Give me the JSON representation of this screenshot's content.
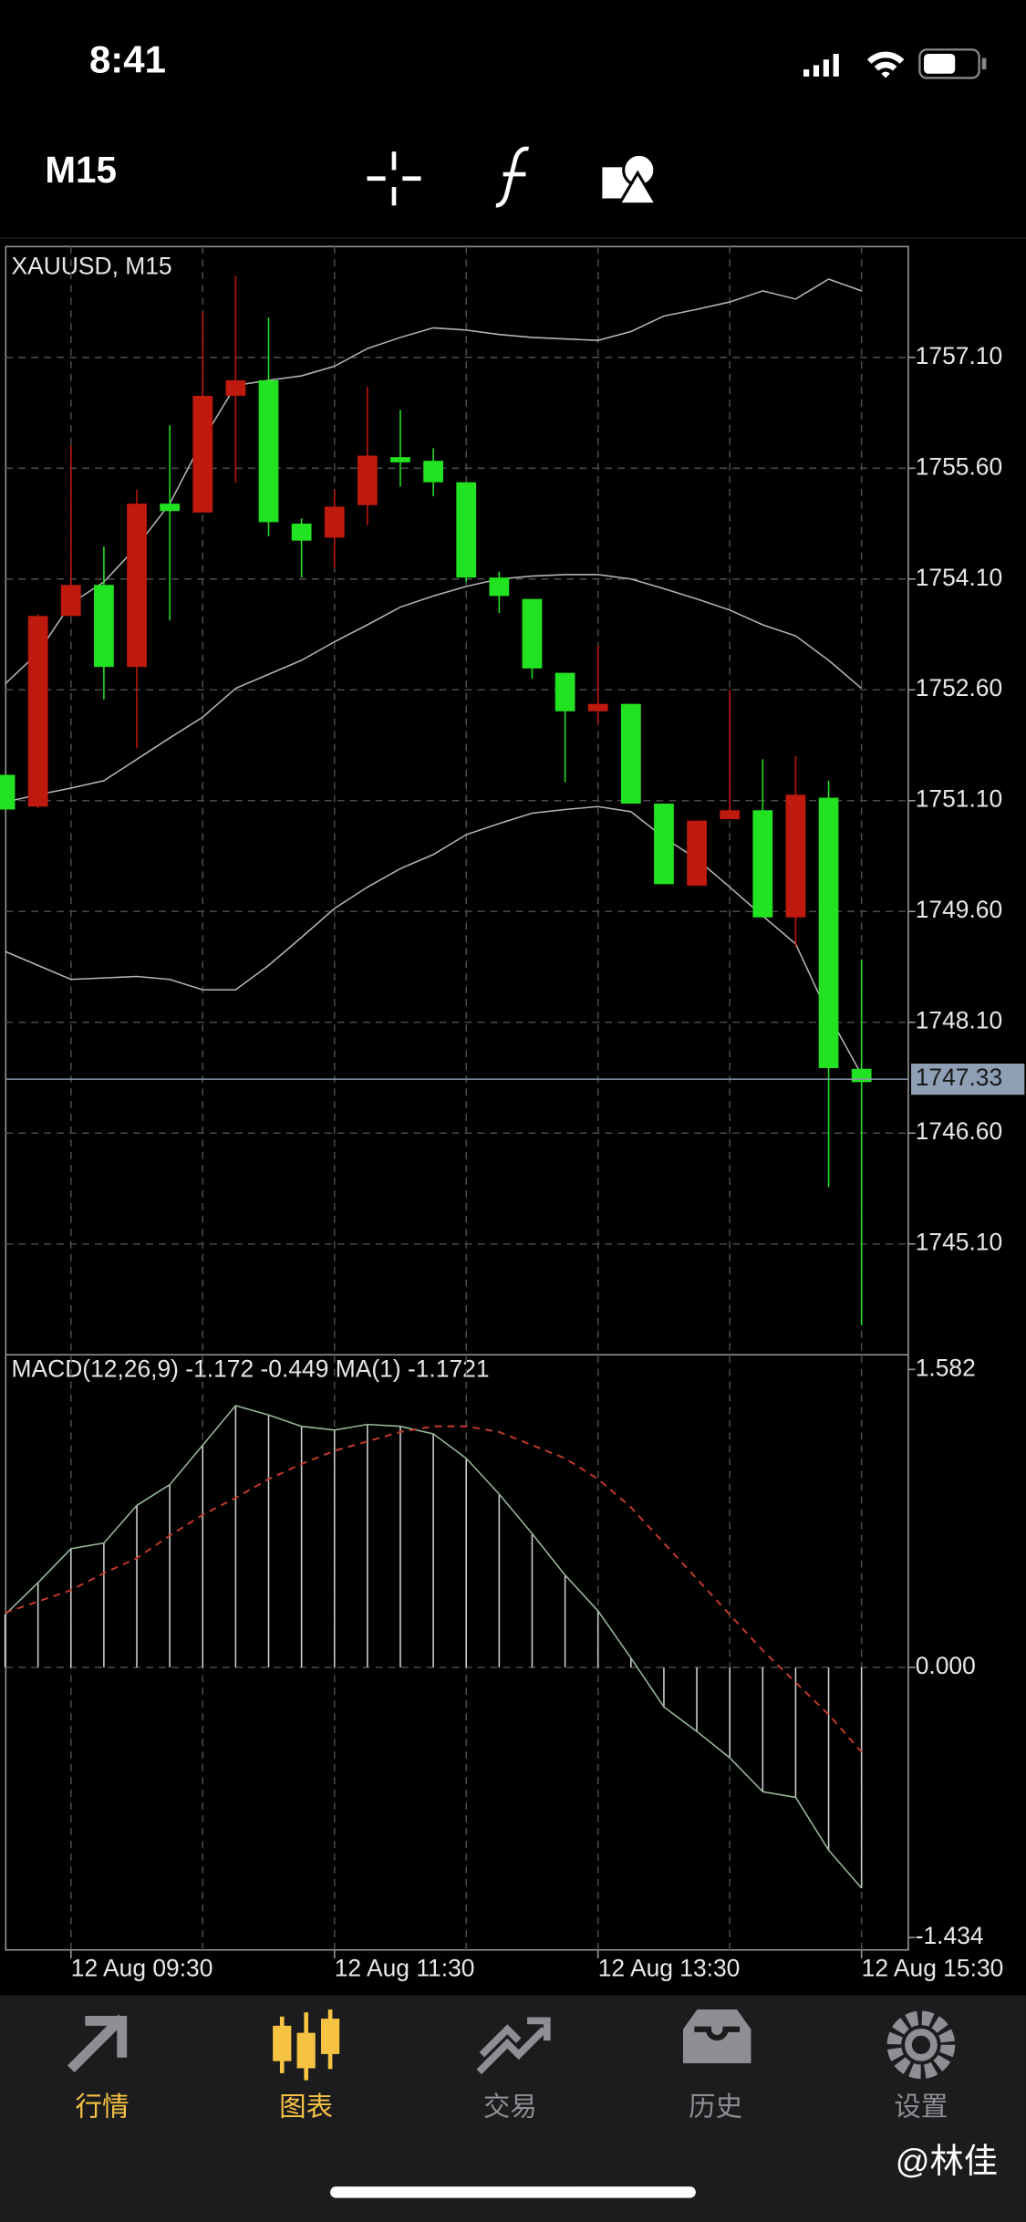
{
  "status_bar": {
    "time": "8:41"
  },
  "toolbar": {
    "timeframe": "M15"
  },
  "chart_data": [
    {
      "type": "candlestick",
      "title": "XAUUSD, M15",
      "categories": [
        null,
        null,
        "12 Aug 09:30",
        null,
        null,
        null,
        null,
        null,
        null,
        null,
        "12 Aug 11:30",
        null,
        null,
        null,
        null,
        null,
        null,
        null,
        "12 Aug 13:30",
        null,
        null,
        null,
        null,
        null,
        null,
        null,
        "12 Aug 15:30"
      ],
      "open": [
        1750.98,
        1753.6,
        1754.02,
        1752.91,
        1755.12,
        1755.02,
        1756.58,
        1756.79,
        1754.87,
        1754.62,
        1755.08,
        1755.77,
        1755.68,
        1755.41,
        1754.12,
        1753.87,
        1752.89,
        1752.31,
        1752.41,
        1751.06,
        1749.97,
        1750.83,
        1750.97,
        1749.52,
        1751.18,
        1747.48,
        1747.29
      ],
      "high": [
        1751.45,
        1753.62,
        1755.91,
        1754.54,
        1755.31,
        1756.18,
        1757.72,
        1758.2,
        1757.64,
        1754.92,
        1755.31,
        1756.7,
        1756.39,
        1755.87,
        1755.41,
        1754.2,
        1753.83,
        1752.83,
        1753.2,
        1752.41,
        1751.06,
        1750.83,
        1752.6,
        1751.66,
        1751.7,
        1751.37,
        1748.95
      ],
      "low": [
        1750.98,
        1751.0,
        1753.6,
        1752.47,
        1751.81,
        1753.54,
        1755.0,
        1755.41,
        1754.68,
        1754.12,
        1754.25,
        1754.83,
        1755.35,
        1755.22,
        1754.06,
        1753.64,
        1752.75,
        1751.35,
        1752.14,
        1751.06,
        1749.97,
        1749.95,
        1750.85,
        1749.52,
        1749.12,
        1745.87,
        1744.0
      ],
      "close": [
        1751.45,
        1751.02,
        1753.6,
        1754.02,
        1752.91,
        1755.12,
        1755.0,
        1756.58,
        1756.79,
        1754.85,
        1754.66,
        1755.1,
        1755.75,
        1755.7,
        1755.41,
        1754.12,
        1753.83,
        1752.83,
        1752.31,
        1752.41,
        1751.06,
        1749.95,
        1750.85,
        1750.97,
        1749.52,
        1751.14,
        1747.47
      ],
      "up_color": "#22e322",
      "down_color": "#c0190d",
      "series": [
        {
          "color": "#b4b4b4",
          "values": [
            1752.68,
            1753.1,
            1753.77,
            1754.06,
            1754.54,
            1755.12,
            1755.98,
            1756.72,
            1756.79,
            1756.85,
            1756.98,
            1757.22,
            1757.37,
            1757.5,
            1757.47,
            1757.41,
            1757.37,
            1757.35,
            1757.33,
            1757.45,
            1757.66,
            1757.75,
            1757.85,
            1758.0,
            1757.89,
            1758.16,
            1758.0
          ]
        },
        {
          "color": "#b4b4b4",
          "values": [
            1751.08,
            1751.18,
            1751.27,
            1751.37,
            1751.66,
            1751.95,
            1752.23,
            1752.62,
            1752.81,
            1753.0,
            1753.25,
            1753.48,
            1753.72,
            1753.87,
            1754.0,
            1754.1,
            1754.14,
            1754.16,
            1754.16,
            1754.1,
            1753.97,
            1753.83,
            1753.68,
            1753.48,
            1753.33,
            1753.0,
            1752.62
          ]
        },
        {
          "color": "#b4b4b4",
          "values": [
            1749.06,
            1748.87,
            1748.68,
            1748.7,
            1748.72,
            1748.68,
            1748.54,
            1748.54,
            1748.87,
            1749.25,
            1749.64,
            1749.93,
            1750.18,
            1750.37,
            1750.64,
            1750.79,
            1750.93,
            1750.98,
            1751.02,
            1750.95,
            1750.6,
            1750.31,
            1749.93,
            1749.54,
            1749.16,
            1748.2,
            1747.39
          ]
        }
      ],
      "last_price": 1747.33,
      "ylim": [
        1743.6,
        1758.6
      ],
      "yticks": [
        {
          "value": 1757.1,
          "label": "1757.10"
        },
        {
          "value": 1755.6,
          "label": "1755.60"
        },
        {
          "value": 1754.1,
          "label": "1754.10"
        },
        {
          "value": 1752.6,
          "label": "1752.60"
        },
        {
          "value": 1751.1,
          "label": "1751.10"
        },
        {
          "value": 1749.6,
          "label": "1749.60"
        },
        {
          "value": 1748.1,
          "label": "1748.10"
        },
        {
          "value": 1746.6,
          "label": "1746.60"
        },
        {
          "value": 1745.1,
          "label": "1745.10"
        }
      ],
      "grid": true
    },
    {
      "type": "macd",
      "title": "MACD(12,26,9) -1.172 -0.449 MA(1) -1.1721",
      "values": [
        0.28,
        0.45,
        0.63,
        0.66,
        0.86,
        0.97,
        1.18,
        1.39,
        1.34,
        1.28,
        1.26,
        1.29,
        1.28,
        1.24,
        1.11,
        0.92,
        0.71,
        0.49,
        0.3,
        0.05,
        -0.21,
        -0.34,
        -0.48,
        -0.66,
        -0.69,
        -0.97,
        -1.172
      ],
      "color": "#d0d0d0",
      "signal": [
        0.29,
        0.35,
        0.41,
        0.5,
        0.58,
        0.7,
        0.81,
        0.9,
        1.0,
        1.08,
        1.15,
        1.2,
        1.25,
        1.28,
        1.28,
        1.25,
        1.18,
        1.11,
        1.0,
        0.85,
        0.66,
        0.47,
        0.28,
        0.09,
        -0.08,
        -0.25,
        -0.449
      ],
      "signal_color": "#c0392b",
      "ylim": [
        -1.5,
        1.66
      ],
      "yticks": [
        1.582,
        {
          "value": 0,
          "label": "0.000"
        },
        -1.434
      ]
    }
  ],
  "tab_bar": {
    "tabs": [
      "行情",
      "图表",
      "交易",
      "历史",
      "设置"
    ]
  },
  "watermark": "@林佳"
}
